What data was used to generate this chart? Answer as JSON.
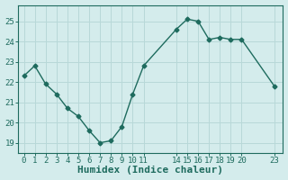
{
  "x": [
    0,
    1,
    2,
    3,
    4,
    5,
    6,
    7,
    8,
    9,
    10,
    11,
    14,
    15,
    16,
    17,
    18,
    19,
    20,
    23
  ],
  "y": [
    22.3,
    22.8,
    21.9,
    21.4,
    20.7,
    20.3,
    19.6,
    19.0,
    19.1,
    19.8,
    21.4,
    22.8,
    24.6,
    25.1,
    25.0,
    24.1,
    24.2,
    24.1,
    24.1,
    21.8
  ],
  "line_color": "#1e6b5e",
  "marker": "D",
  "marker_size": 2.5,
  "bg_color": "#d4ecec",
  "grid_color": "#b8d8d8",
  "axis_color": "#1e6b5e",
  "xlabel": "Humidex (Indice chaleur)",
  "ylim": [
    18.5,
    25.8
  ],
  "yticks": [
    19,
    20,
    21,
    22,
    23,
    24,
    25
  ],
  "xticks": [
    0,
    1,
    2,
    3,
    4,
    5,
    6,
    7,
    8,
    9,
    10,
    11,
    14,
    15,
    16,
    17,
    18,
    19,
    20,
    23
  ],
  "tick_label_fontsize": 6.5,
  "xlabel_fontsize": 8
}
